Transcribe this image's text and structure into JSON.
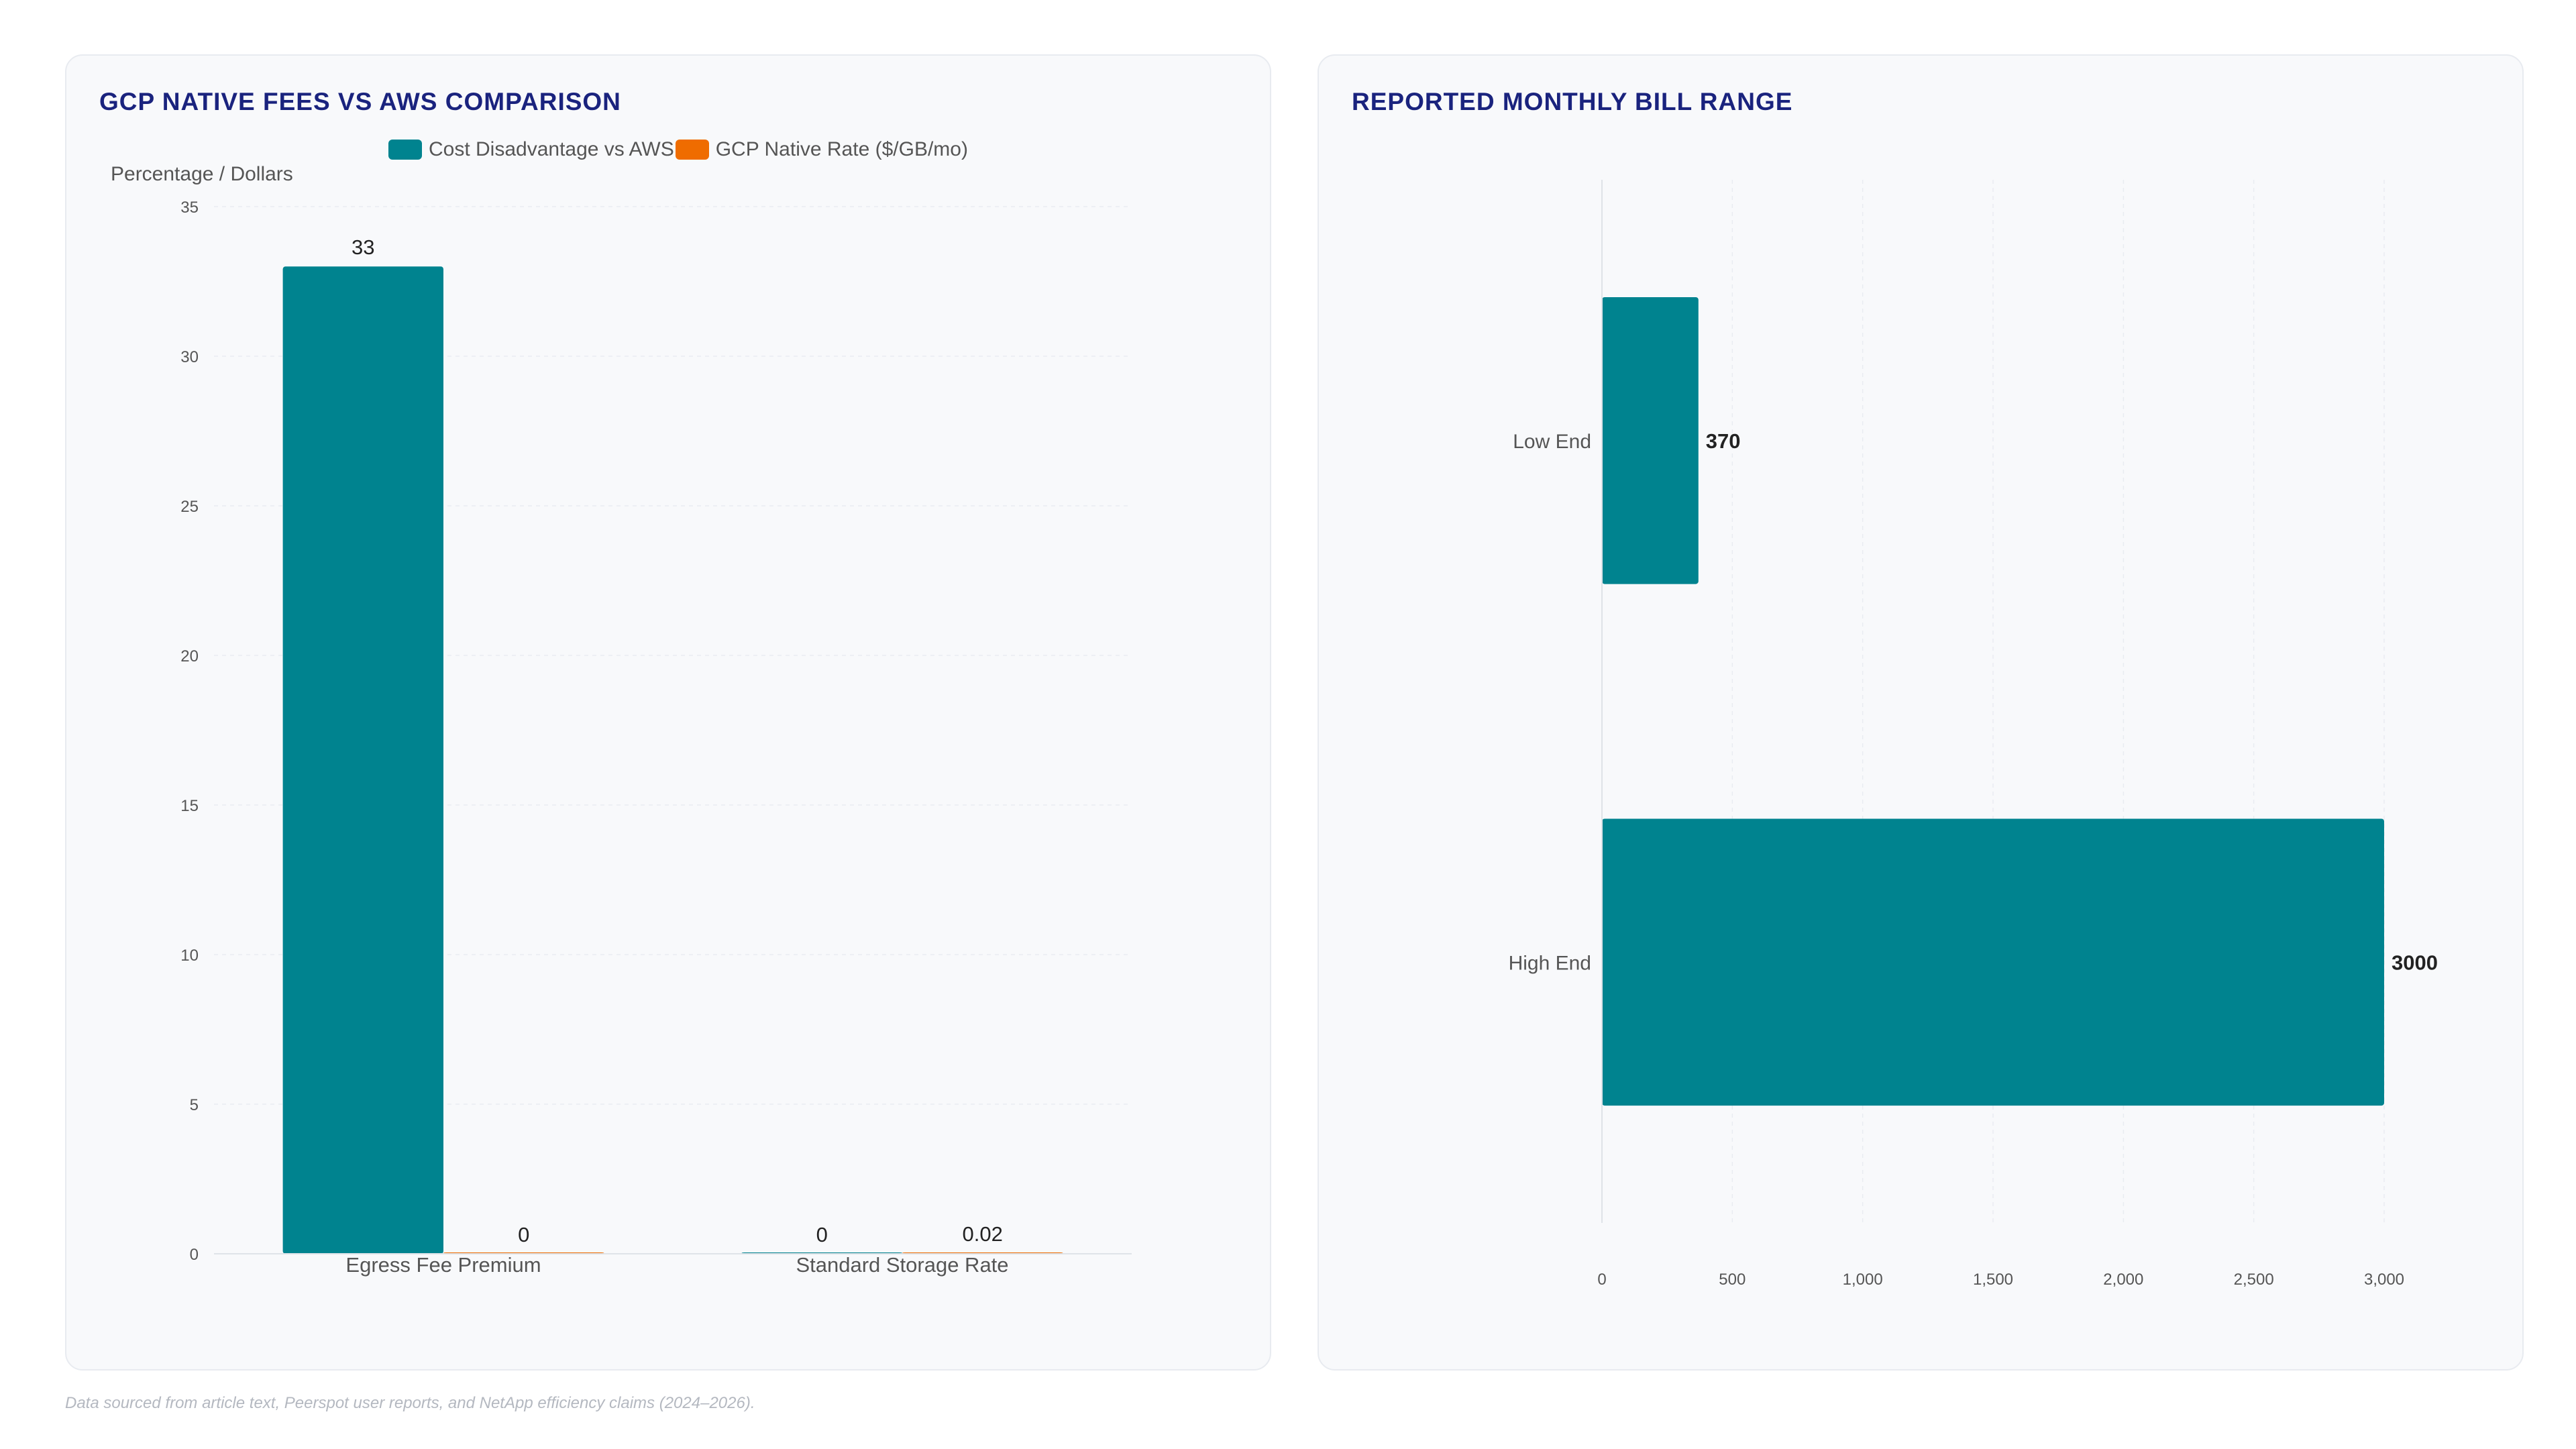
{
  "colors": {
    "teal": "#00838f",
    "orange": "#ef6c00",
    "title": "#1a237e"
  },
  "chart_data": [
    {
      "type": "bar",
      "title": "GCP NATIVE FEES VS AWS COMPARISON",
      "ylabel": "Percentage / Dollars",
      "xlabel": "",
      "categories": [
        "Egress Fee Premium",
        "Standard Storage Rate"
      ],
      "series": [
        {
          "name": "Cost Disadvantage vs AWS",
          "color": "#00838f",
          "values": [
            33,
            0
          ]
        },
        {
          "name": "GCP Native Rate ($/GB/mo)",
          "color": "#ef6c00",
          "values": [
            0,
            0.02
          ]
        }
      ],
      "ylim": [
        0,
        35
      ],
      "yticks": [
        "0",
        "5",
        "10",
        "15",
        "20",
        "25",
        "30",
        "35"
      ],
      "grid": true,
      "legend": "top"
    },
    {
      "type": "bar",
      "orientation": "horizontal",
      "title": "REPORTED MONTHLY BILL RANGE",
      "categories": [
        "Low End",
        "High End"
      ],
      "values": [
        370,
        3000
      ],
      "color": "#00838f",
      "xlim": [
        0,
        3000
      ],
      "xticks": [
        "0",
        "500",
        "1,000",
        "1,500",
        "2,000",
        "2,500",
        "3,000"
      ],
      "grid": true
    }
  ],
  "footnote": "Data sourced from article text, Peerspot user reports, and NetApp efficiency claims (2024–2026)."
}
